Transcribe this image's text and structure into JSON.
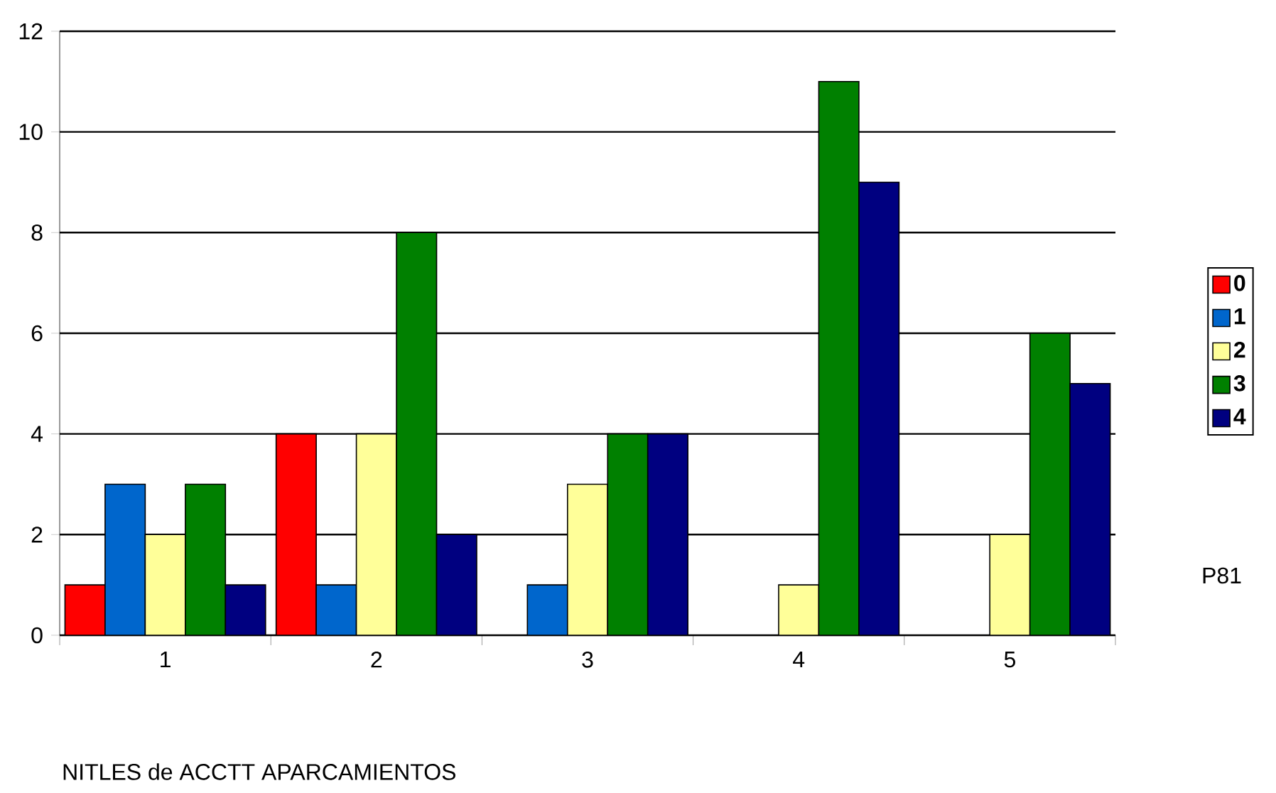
{
  "chart_data": {
    "type": "bar",
    "xlabel": "NITLES de ACCTT APARCAMIENTOS",
    "annotations": [
      "P81"
    ],
    "categories": [
      "1",
      "2",
      "3",
      "4",
      "5"
    ],
    "series": [
      {
        "name": "0",
        "color": "#ff0000",
        "values": [
          1,
          4,
          null,
          null,
          null
        ]
      },
      {
        "name": "1",
        "color": "#0066cc",
        "values": [
          3,
          1,
          1,
          null,
          null
        ]
      },
      {
        "name": "2",
        "color": "#ffff99",
        "values": [
          2,
          4,
          3,
          1,
          2
        ]
      },
      {
        "name": "3",
        "color": "#008000",
        "values": [
          3,
          8,
          4,
          11,
          6
        ]
      },
      {
        "name": "4",
        "color": "#000080",
        "values": [
          1,
          2,
          4,
          9,
          5
        ]
      }
    ],
    "ylim": [
      0,
      12
    ],
    "yticks": [
      0,
      2,
      4,
      6,
      8,
      10,
      12
    ],
    "grid": "y",
    "legend": "right"
  }
}
